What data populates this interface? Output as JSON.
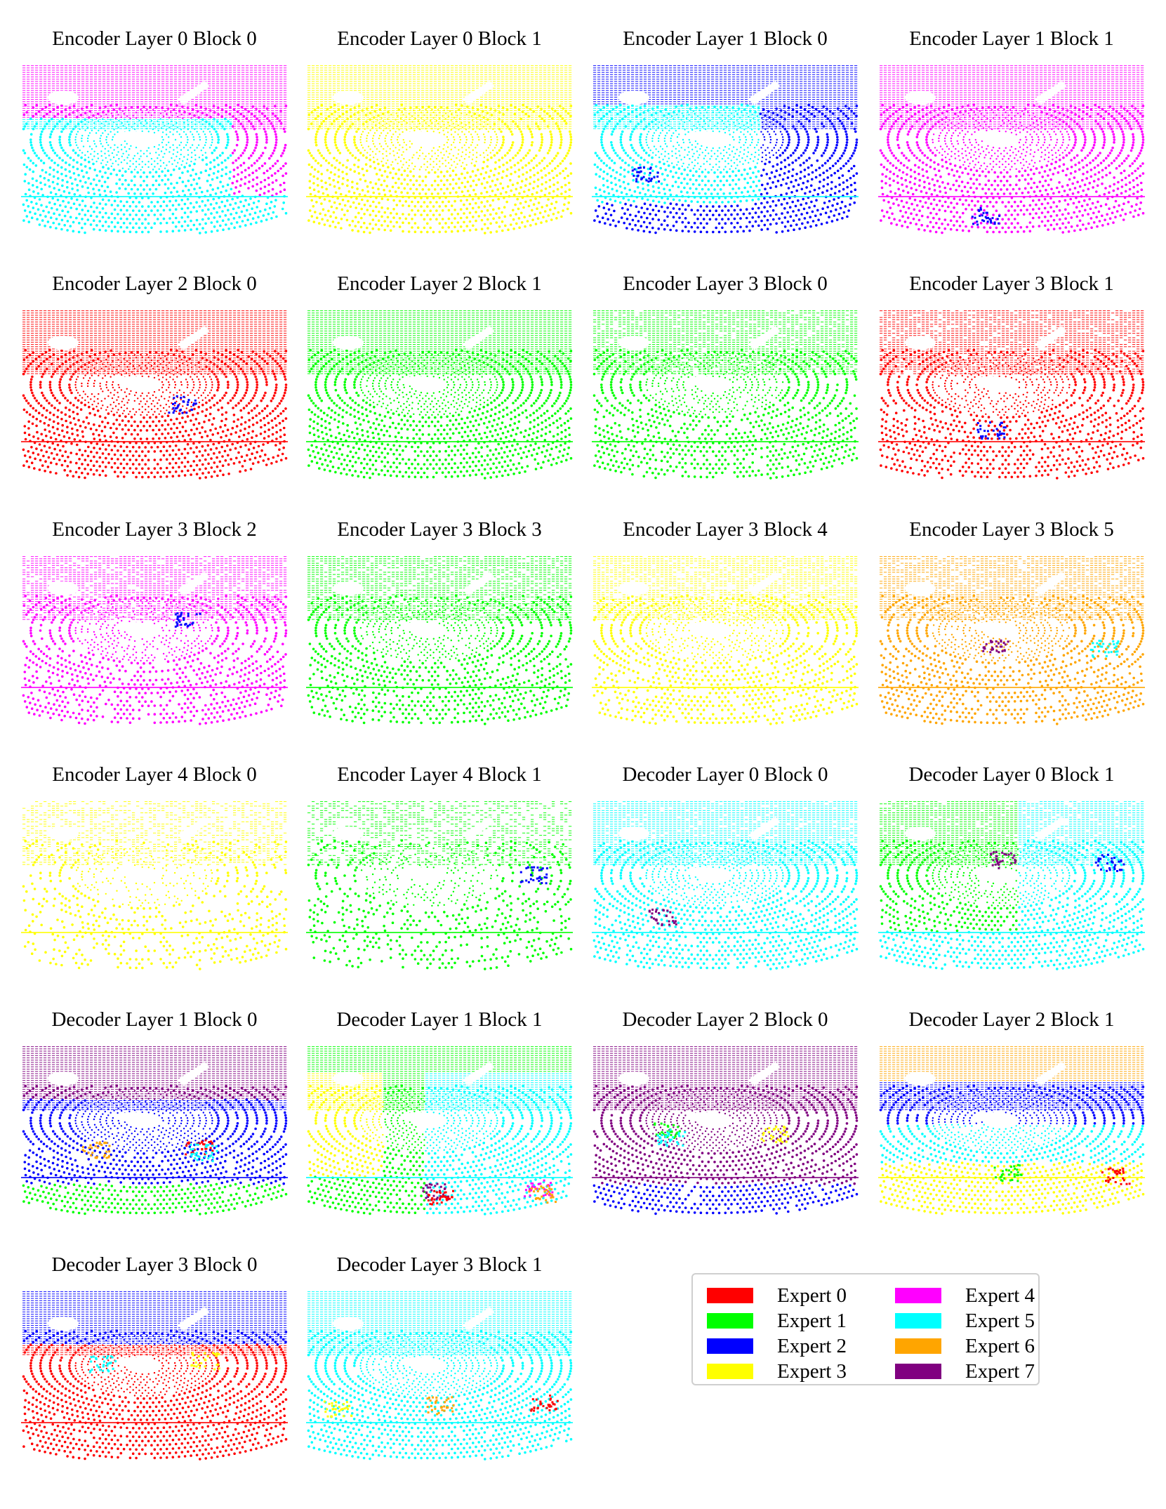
{
  "experts": [
    {
      "label": "Expert 0",
      "color": "#ff0000"
    },
    {
      "label": "Expert 1",
      "color": "#00ff00"
    },
    {
      "label": "Expert 2",
      "color": "#0000ff"
    },
    {
      "label": "Expert 3",
      "color": "#ffff00"
    },
    {
      "label": "Expert 4",
      "color": "#ff00ff"
    },
    {
      "label": "Expert 5",
      "color": "#00ffff"
    },
    {
      "label": "Expert 6",
      "color": "#ffa500"
    },
    {
      "label": "Expert 7",
      "color": "#800080"
    }
  ],
  "panels": [
    {
      "title": "Encoder Layer 0 Block 0",
      "layout": "top-mid",
      "experts": [
        4,
        5
      ],
      "patches": [],
      "density": 1.0
    },
    {
      "title": "Encoder Layer 0 Block 1",
      "layout": "single",
      "experts": [
        3
      ],
      "patches": [],
      "density": 1.0
    },
    {
      "title": "Encoder Layer 1 Block 0",
      "layout": "quadrant",
      "experts": [
        2,
        5,
        2
      ],
      "patches": [
        2
      ],
      "density": 1.0
    },
    {
      "title": "Encoder Layer 1 Block 1",
      "layout": "single",
      "experts": [
        4
      ],
      "patches": [
        2
      ],
      "density": 1.0
    },
    {
      "title": "Encoder Layer 2 Block 0",
      "layout": "single",
      "experts": [
        0
      ],
      "patches": [
        2
      ],
      "density": 1.0
    },
    {
      "title": "Encoder Layer 2 Block 1",
      "layout": "single",
      "experts": [
        1
      ],
      "patches": [],
      "density": 1.0
    },
    {
      "title": "Encoder Layer 3 Block 0",
      "layout": "single",
      "experts": [
        1
      ],
      "patches": [],
      "density": 0.85
    },
    {
      "title": "Encoder Layer 3 Block 1",
      "layout": "single",
      "experts": [
        0
      ],
      "patches": [
        2
      ],
      "density": 0.85
    },
    {
      "title": "Encoder Layer 3 Block 2",
      "layout": "single",
      "experts": [
        4
      ],
      "patches": [
        2
      ],
      "density": 0.8
    },
    {
      "title": "Encoder Layer 3 Block 3",
      "layout": "single",
      "experts": [
        1
      ],
      "patches": [],
      "density": 0.8
    },
    {
      "title": "Encoder Layer 3 Block 4",
      "layout": "single",
      "experts": [
        3
      ],
      "patches": [],
      "density": 0.8
    },
    {
      "title": "Encoder Layer 3 Block 5",
      "layout": "single",
      "experts": [
        6
      ],
      "patches": [
        7,
        5
      ],
      "density": 0.8
    },
    {
      "title": "Encoder Layer 4 Block 0",
      "layout": "single",
      "experts": [
        3
      ],
      "patches": [],
      "density": 0.5
    },
    {
      "title": "Encoder Layer 4 Block 1",
      "layout": "single",
      "experts": [
        1
      ],
      "patches": [
        2
      ],
      "density": 0.5
    },
    {
      "title": "Decoder Layer 0 Block 0",
      "layout": "single",
      "experts": [
        5
      ],
      "patches": [
        7
      ],
      "density": 0.9
    },
    {
      "title": "Decoder Layer 0 Block 1",
      "layout": "left-right",
      "experts": [
        1,
        5
      ],
      "patches": [
        7,
        2
      ],
      "density": 0.9
    },
    {
      "title": "Decoder Layer 1 Block 0",
      "layout": "bands",
      "experts": [
        7,
        2,
        1
      ],
      "patches": [
        0,
        6,
        5
      ],
      "density": 1.0
    },
    {
      "title": "Decoder Layer 1 Block 1",
      "layout": "mixed",
      "experts": [
        1,
        3,
        5
      ],
      "patches": [
        4,
        7,
        6,
        0
      ],
      "density": 1.0
    },
    {
      "title": "Decoder Layer 2 Block 0",
      "layout": "bands",
      "experts": [
        7,
        7,
        2
      ],
      "patches": [
        1,
        3,
        5
      ],
      "density": 1.0
    },
    {
      "title": "Decoder Layer 2 Block 1",
      "layout": "bands4",
      "experts": [
        6,
        2,
        5,
        3
      ],
      "patches": [
        1,
        0
      ],
      "density": 1.0
    },
    {
      "title": "Decoder Layer 3 Block 0",
      "layout": "bands",
      "experts": [
        2,
        0,
        0
      ],
      "patches": [
        3,
        5
      ],
      "density": 1.0
    },
    {
      "title": "Decoder Layer 3 Block 1",
      "layout": "single",
      "experts": [
        5
      ],
      "patches": [
        0,
        6,
        3
      ],
      "density": 1.0
    }
  ]
}
